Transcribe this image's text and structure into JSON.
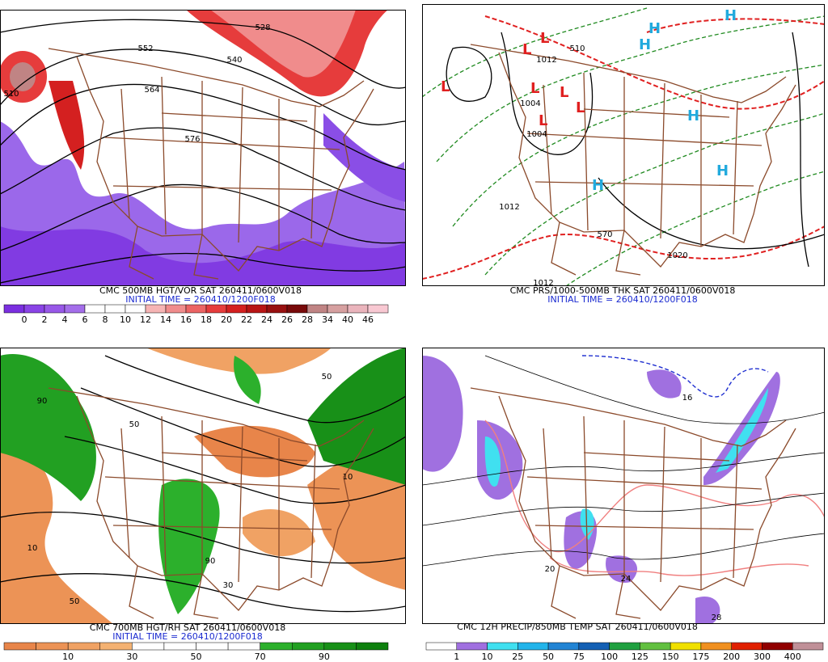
{
  "panels": [
    {
      "caption": "CMC 500MB HGT/VOR SAT 260411/0600V018",
      "initial_time": "INITIAL TIME = 260410/1200F018",
      "scale": {
        "labels": [
          "0",
          "2",
          "4",
          "6",
          "8",
          "10",
          "12",
          "14",
          "16",
          "18",
          "20",
          "22",
          "24",
          "26",
          "28",
          "34",
          "40",
          "46"
        ],
        "colors": [
          "#7b2fe0",
          "#8a44e6",
          "#9858e8",
          "#a46eea",
          "#ffffff",
          "#ffffff",
          "#ffffff",
          "#f6b4b4",
          "#f08c8c",
          "#ec6464",
          "#e63c3c",
          "#d42020",
          "#b81414",
          "#981010",
          "#780a0a",
          "#c08484",
          "#d6a0a0",
          "#eab4bc",
          "#f8c8d2"
        ]
      },
      "map_labels": [
        "528",
        "540",
        "552",
        "564",
        "576",
        "510"
      ]
    },
    {
      "caption": "CMC PRS/1000-500MB THK SAT 260411/0600V018",
      "initial_time": "INITIAL TIME = 260410/1200F018",
      "map_labels": [
        "L",
        "L",
        "L",
        "L",
        "L",
        "L",
        "L",
        "H",
        "H",
        "H",
        "H",
        "H",
        "H",
        "1012",
        "1004",
        "1004",
        "1020",
        "1012",
        "1012",
        "510",
        "570"
      ]
    },
    {
      "caption": "CMC 700MB HGT/RH SAT 260411/0600V018",
      "initial_time": "INITIAL TIME = 260410/1200F018",
      "scale": {
        "labels": [
          "10",
          "30",
          "50",
          "70",
          "90"
        ],
        "colors": [
          "#e8854a",
          "#ec9356",
          "#f0a264",
          "#f4b272",
          "#ffffff",
          "#ffffff",
          "#ffffff",
          "#ffffff",
          "#2cb02c",
          "#22a022",
          "#189018",
          "#0e800e"
        ]
      },
      "map_labels": [
        "50",
        "90",
        "10",
        "30",
        "50",
        "10",
        "90",
        "50"
      ]
    },
    {
      "caption": "CMC 12H PRECIP/850MB TEMP SAT 260411/0600V018",
      "scale": {
        "labels": [
          "1",
          "10",
          "25",
          "50",
          "75",
          "100",
          "125",
          "150",
          "175",
          "200",
          "300",
          "400"
        ],
        "colors": [
          "#ffffff",
          "#a070e0",
          "#40e0f0",
          "#22b4ea",
          "#2284d4",
          "#1460b4",
          "#20a040",
          "#62c040",
          "#f0e000",
          "#f09020",
          "#e02000",
          "#900000",
          "#c09098"
        ]
      },
      "map_labels": [
        "24",
        "28",
        "16",
        "20"
      ]
    }
  ]
}
